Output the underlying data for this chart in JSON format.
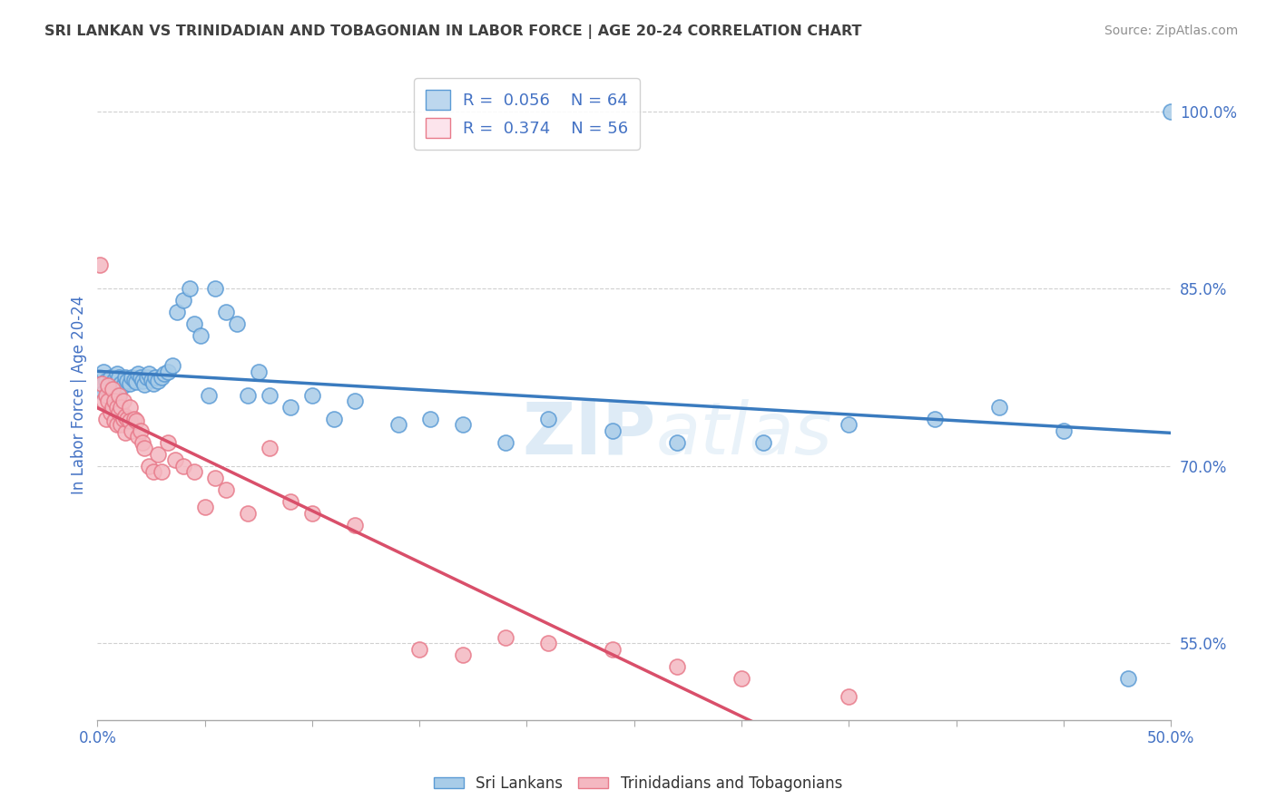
{
  "title": "SRI LANKAN VS TRINIDADIAN AND TOBAGONIAN IN LABOR FORCE | AGE 20-24 CORRELATION CHART",
  "source": "Source: ZipAtlas.com",
  "ylabel": "In Labor Force | Age 20-24",
  "watermark": "ZIPatlas",
  "xmin": 0.0,
  "xmax": 0.5,
  "ymin": 0.485,
  "ymax": 1.035,
  "yticks": [
    0.55,
    0.7,
    0.85,
    1.0
  ],
  "ytick_labels": [
    "55.0%",
    "70.0%",
    "85.0%",
    "100.0%"
  ],
  "xticks": [
    0.0,
    0.05,
    0.1,
    0.15,
    0.2,
    0.25,
    0.3,
    0.35,
    0.4,
    0.45,
    0.5
  ],
  "xtick_labels": [
    "0.0%",
    "",
    "",
    "",
    "",
    "",
    "",
    "",
    "",
    "",
    "50.0%"
  ],
  "sri_lankan_R": 0.056,
  "sri_lankan_N": 64,
  "trinidadian_R": 0.374,
  "trinidadian_N": 56,
  "blue_color": "#a8cce8",
  "blue_edge_color": "#5b9bd5",
  "blue_line_color": "#3a7bbf",
  "pink_color": "#f4b8c1",
  "pink_edge_color": "#e87a8a",
  "pink_line_color": "#d94f6a",
  "pink_dash_color": "#e8a0aa",
  "legend_box_blue": "#bdd7ee",
  "legend_box_pink": "#fce4ec",
  "title_color": "#404040",
  "source_color": "#909090",
  "label_color": "#4472c4",
  "grid_color": "#d0d0d0",
  "background_color": "#ffffff",
  "blue_dots_x": [
    0.001,
    0.002,
    0.003,
    0.003,
    0.004,
    0.005,
    0.006,
    0.007,
    0.008,
    0.009,
    0.01,
    0.01,
    0.011,
    0.012,
    0.013,
    0.014,
    0.015,
    0.016,
    0.017,
    0.018,
    0.019,
    0.02,
    0.021,
    0.022,
    0.023,
    0.024,
    0.025,
    0.026,
    0.027,
    0.028,
    0.03,
    0.031,
    0.033,
    0.035,
    0.037,
    0.04,
    0.043,
    0.045,
    0.048,
    0.052,
    0.055,
    0.06,
    0.065,
    0.07,
    0.075,
    0.08,
    0.09,
    0.1,
    0.11,
    0.12,
    0.14,
    0.155,
    0.17,
    0.19,
    0.21,
    0.24,
    0.27,
    0.31,
    0.35,
    0.39,
    0.42,
    0.45,
    0.48,
    0.5
  ],
  "blue_dots_y": [
    0.775,
    0.768,
    0.762,
    0.78,
    0.772,
    0.765,
    0.775,
    0.77,
    0.773,
    0.778,
    0.775,
    0.76,
    0.77,
    0.768,
    0.775,
    0.772,
    0.77,
    0.775,
    0.773,
    0.771,
    0.778,
    0.775,
    0.772,
    0.769,
    0.775,
    0.778,
    0.773,
    0.77,
    0.775,
    0.772,
    0.775,
    0.778,
    0.78,
    0.785,
    0.83,
    0.84,
    0.85,
    0.82,
    0.81,
    0.76,
    0.85,
    0.83,
    0.82,
    0.76,
    0.78,
    0.76,
    0.75,
    0.76,
    0.74,
    0.755,
    0.735,
    0.74,
    0.735,
    0.72,
    0.74,
    0.73,
    0.72,
    0.72,
    0.735,
    0.74,
    0.75,
    0.73,
    0.52,
    1.0
  ],
  "pink_dots_x": [
    0.001,
    0.002,
    0.003,
    0.004,
    0.004,
    0.005,
    0.005,
    0.006,
    0.007,
    0.007,
    0.008,
    0.008,
    0.009,
    0.009,
    0.01,
    0.01,
    0.011,
    0.011,
    0.012,
    0.012,
    0.013,
    0.013,
    0.014,
    0.015,
    0.015,
    0.016,
    0.017,
    0.018,
    0.019,
    0.02,
    0.021,
    0.022,
    0.024,
    0.026,
    0.028,
    0.03,
    0.033,
    0.036,
    0.04,
    0.045,
    0.05,
    0.055,
    0.06,
    0.07,
    0.08,
    0.09,
    0.1,
    0.12,
    0.15,
    0.17,
    0.19,
    0.21,
    0.24,
    0.27,
    0.3,
    0.35
  ],
  "pink_dots_y": [
    0.87,
    0.77,
    0.755,
    0.74,
    0.76,
    0.768,
    0.755,
    0.745,
    0.765,
    0.75,
    0.755,
    0.738,
    0.75,
    0.735,
    0.76,
    0.745,
    0.75,
    0.735,
    0.74,
    0.755,
    0.742,
    0.728,
    0.74,
    0.75,
    0.738,
    0.73,
    0.74,
    0.738,
    0.725,
    0.73,
    0.72,
    0.715,
    0.7,
    0.695,
    0.71,
    0.695,
    0.72,
    0.705,
    0.7,
    0.695,
    0.665,
    0.69,
    0.68,
    0.66,
    0.715,
    0.67,
    0.66,
    0.65,
    0.545,
    0.54,
    0.555,
    0.55,
    0.545,
    0.53,
    0.52,
    0.505
  ]
}
